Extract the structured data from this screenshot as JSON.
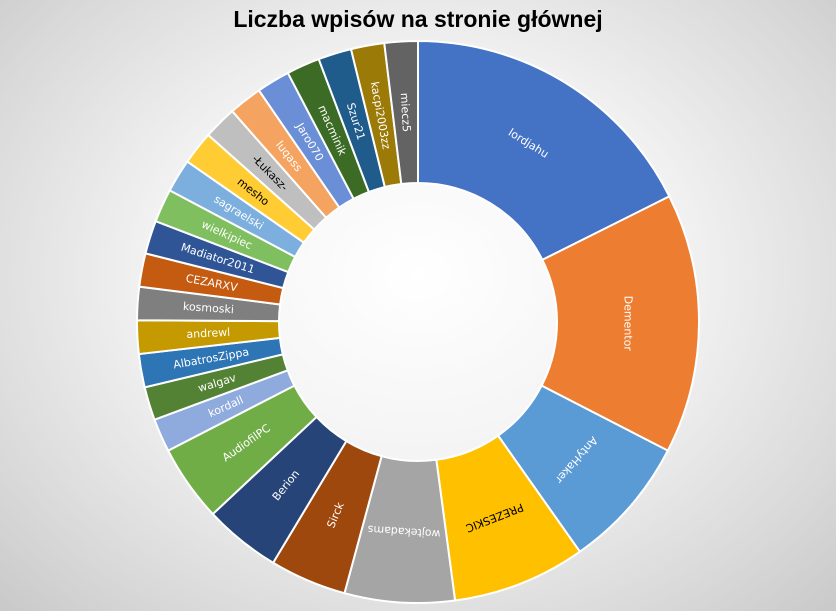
{
  "chart_data": {
    "type": "pie",
    "style": "doughnut",
    "title": "Liczba wpisów na stronie głównej",
    "slices": [
      {
        "label": "lordjahu",
        "value": 92,
        "color": "#4472c4"
      },
      {
        "label": "Dementor",
        "value": 78,
        "color": "#ed7d31"
      },
      {
        "label": "AntyHaker",
        "value": 40,
        "color": "#5b9bd5"
      },
      {
        "label": "PREZESKIC",
        "value": 40,
        "color": "#ffc000"
      },
      {
        "label": "wojtekadams",
        "value": 33,
        "color": "#a5a5a5"
      },
      {
        "label": "Sirck",
        "value": 23,
        "color": "#9e480e"
      },
      {
        "label": "Berion",
        "value": 23,
        "color": "#264478"
      },
      {
        "label": "AudiofilPC",
        "value": 23,
        "color": "#70ad47"
      },
      {
        "label": "kordall",
        "value": 10,
        "color": "#8faadc"
      },
      {
        "label": "walgav",
        "value": 10,
        "color": "#548235"
      },
      {
        "label": "AlbatrosZippa",
        "value": 10,
        "color": "#2e75b6"
      },
      {
        "label": "andrewl",
        "value": 10,
        "color": "#c59a00"
      },
      {
        "label": "kosmoski",
        "value": 10,
        "color": "#7f7f7f"
      },
      {
        "label": "CEZARXV",
        "value": 10,
        "color": "#c55a11"
      },
      {
        "label": "Madiator2011",
        "value": 10,
        "color": "#2f5597"
      },
      {
        "label": "wielkipiec",
        "value": 10,
        "color": "#7fbf5f"
      },
      {
        "label": "sagraelski",
        "value": 10,
        "color": "#7cafdd"
      },
      {
        "label": "mesho",
        "value": 10,
        "color": "#ffcd33"
      },
      {
        "label": "-Łukasz-",
        "value": 10,
        "color": "#bfbfbf"
      },
      {
        "label": "luqass",
        "value": 10,
        "color": "#f4a460"
      },
      {
        "label": "Jaro070",
        "value": 10,
        "color": "#6a8fd6"
      },
      {
        "label": "macminik",
        "value": 10,
        "color": "#3b6b24"
      },
      {
        "label": "Szur21",
        "value": 10,
        "color": "#1f5c8c"
      },
      {
        "label": "kacpi2003zz",
        "value": 10,
        "color": "#9c7a08"
      },
      {
        "label": "miecz5",
        "value": 10,
        "color": "#636363"
      }
    ]
  }
}
